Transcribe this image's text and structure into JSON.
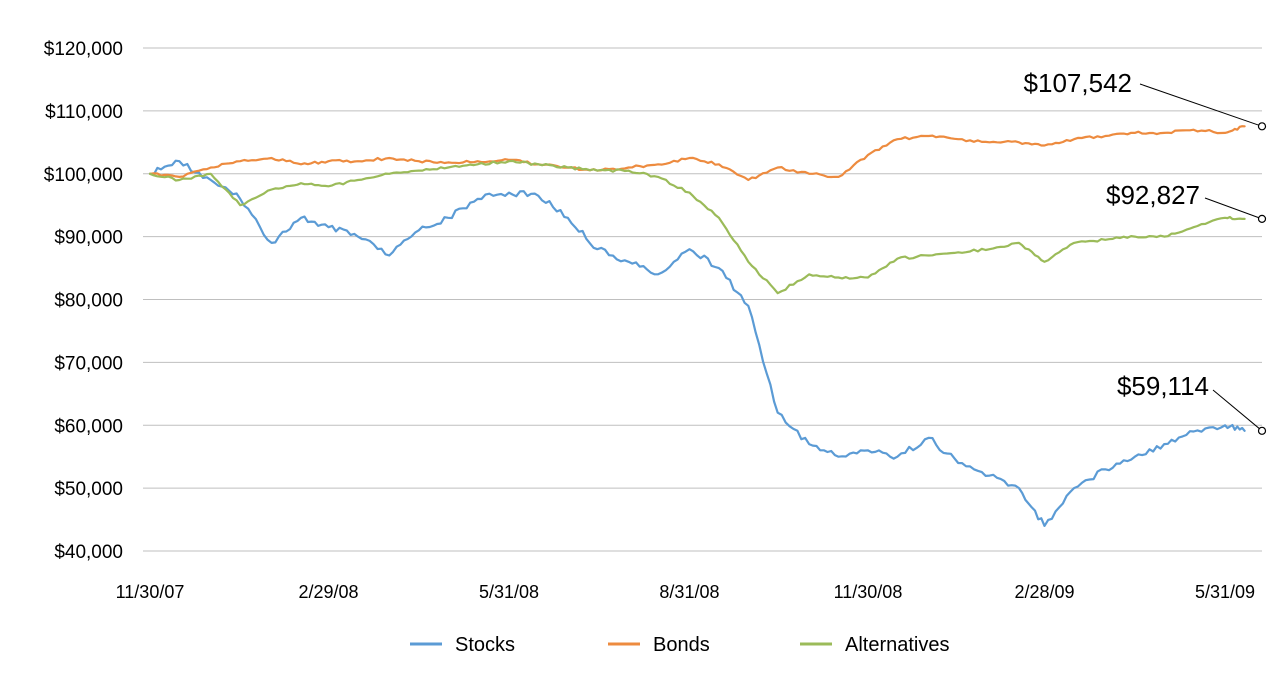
{
  "chart_data": {
    "type": "line",
    "title": "",
    "xlabel": "",
    "ylabel": "",
    "ylim": [
      40000,
      120000
    ],
    "y_ticks": [
      {
        "value": 120000,
        "label": "$120,000"
      },
      {
        "value": 110000,
        "label": "$110,000"
      },
      {
        "value": 100000,
        "label": "$100,000"
      },
      {
        "value": 90000,
        "label": "$90,000"
      },
      {
        "value": 80000,
        "label": "$80,000"
      },
      {
        "value": 70000,
        "label": "$70,000"
      },
      {
        "value": 60000,
        "label": "$60,000"
      },
      {
        "value": 50000,
        "label": "$50,000"
      },
      {
        "value": 40000,
        "label": "$40,000"
      }
    ],
    "x_ticks": [
      "11/30/07",
      "2/29/08",
      "5/31/08",
      "8/31/08",
      "11/30/08",
      "2/28/09",
      "5/31/09"
    ],
    "x": [
      "11/30/07",
      "12/15/07",
      "12/31/07",
      "1/15/08",
      "1/31/08",
      "2/15/08",
      "2/29/08",
      "3/15/08",
      "3/31/08",
      "4/15/08",
      "4/30/08",
      "5/15/08",
      "5/31/08",
      "6/15/08",
      "6/30/08",
      "7/15/08",
      "7/31/08",
      "8/15/08",
      "8/31/08",
      "9/15/08",
      "9/30/08",
      "10/15/08",
      "10/31/08",
      "11/15/08",
      "11/30/08",
      "12/15/08",
      "12/31/08",
      "1/15/09",
      "1/31/09",
      "2/15/09",
      "2/28/09",
      "3/15/09",
      "3/31/09",
      "4/15/09",
      "4/30/09",
      "5/15/09",
      "5/31/09",
      "6/10/09"
    ],
    "grid": true,
    "legend_position": "bottom",
    "series": [
      {
        "name": "Stocks",
        "color": "#5b9bd5",
        "values": [
          100000,
          102000,
          99000,
          96000,
          89000,
          93000,
          91500,
          90000,
          87000,
          91000,
          93000,
          96000,
          97000,
          96500,
          93000,
          88000,
          86000,
          84000,
          88000,
          85000,
          79000,
          62000,
          57000,
          55000,
          56000,
          55000,
          58000,
          54000,
          52000,
          50000,
          44000,
          50000,
          53000,
          55000,
          57000,
          59000,
          60000,
          59114
        ]
      },
      {
        "name": "Bonds",
        "color": "#ed8b3f",
        "values": [
          100000,
          99500,
          101000,
          102000,
          102500,
          101500,
          102000,
          102000,
          102500,
          102000,
          101800,
          102000,
          102200,
          101500,
          101000,
          100500,
          101000,
          101500,
          102500,
          101500,
          99000,
          101000,
          100000,
          99500,
          103000,
          105500,
          106000,
          105500,
          105000,
          105000,
          104500,
          105500,
          106000,
          106500,
          106500,
          107000,
          106500,
          107542
        ]
      },
      {
        "name": "Alternatives",
        "color": "#9bbb59",
        "values": [
          100000,
          99000,
          100000,
          95000,
          97500,
          98500,
          98000,
          99000,
          100000,
          100500,
          101000,
          101500,
          102000,
          101500,
          101000,
          100500,
          100500,
          99500,
          97000,
          93000,
          86000,
          81000,
          84000,
          83500,
          83500,
          86500,
          87000,
          87500,
          88000,
          89000,
          86000,
          89000,
          89500,
          90000,
          90000,
          91500,
          93000,
          92827
        ]
      }
    ],
    "annotations": [
      {
        "series": "Bonds",
        "label": "$107,542",
        "value": 107542
      },
      {
        "series": "Alternatives",
        "label": "$92,827",
        "value": 92827
      },
      {
        "series": "Stocks",
        "label": "$59,114",
        "value": 59114
      }
    ]
  }
}
